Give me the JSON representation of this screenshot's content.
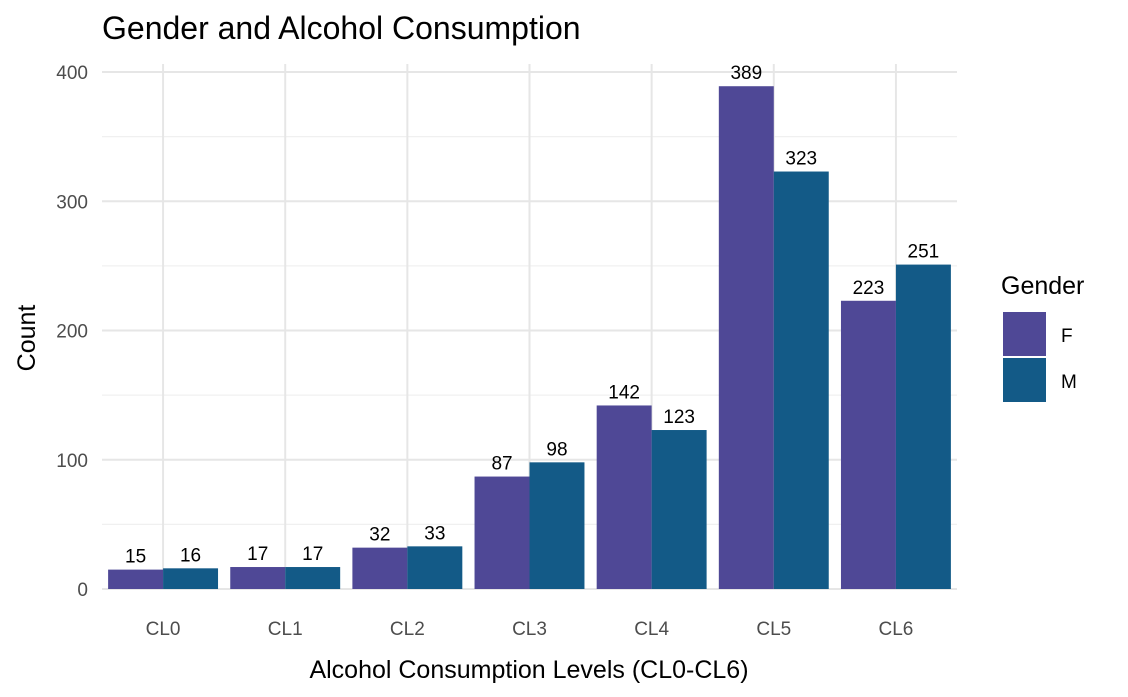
{
  "chart_data": {
    "type": "bar",
    "title": "Gender and Alcohol Consumption",
    "xlabel": "Alcohol Consumption Levels (CL0-CL6)",
    "ylabel": "Count",
    "categories": [
      "CL0",
      "CL1",
      "CL2",
      "CL3",
      "CL4",
      "CL5",
      "CL6"
    ],
    "series": [
      {
        "name": "F",
        "values": [
          15,
          17,
          32,
          87,
          142,
          389,
          223
        ],
        "color": "#4f4896"
      },
      {
        "name": "M",
        "values": [
          16,
          17,
          33,
          98,
          123,
          323,
          251
        ],
        "color": "#135a87"
      }
    ],
    "ylim": [
      0,
      400
    ],
    "yticks": [
      0,
      100,
      200,
      300,
      400
    ],
    "grid": true,
    "legend": {
      "title": "Gender",
      "position": "right"
    }
  }
}
